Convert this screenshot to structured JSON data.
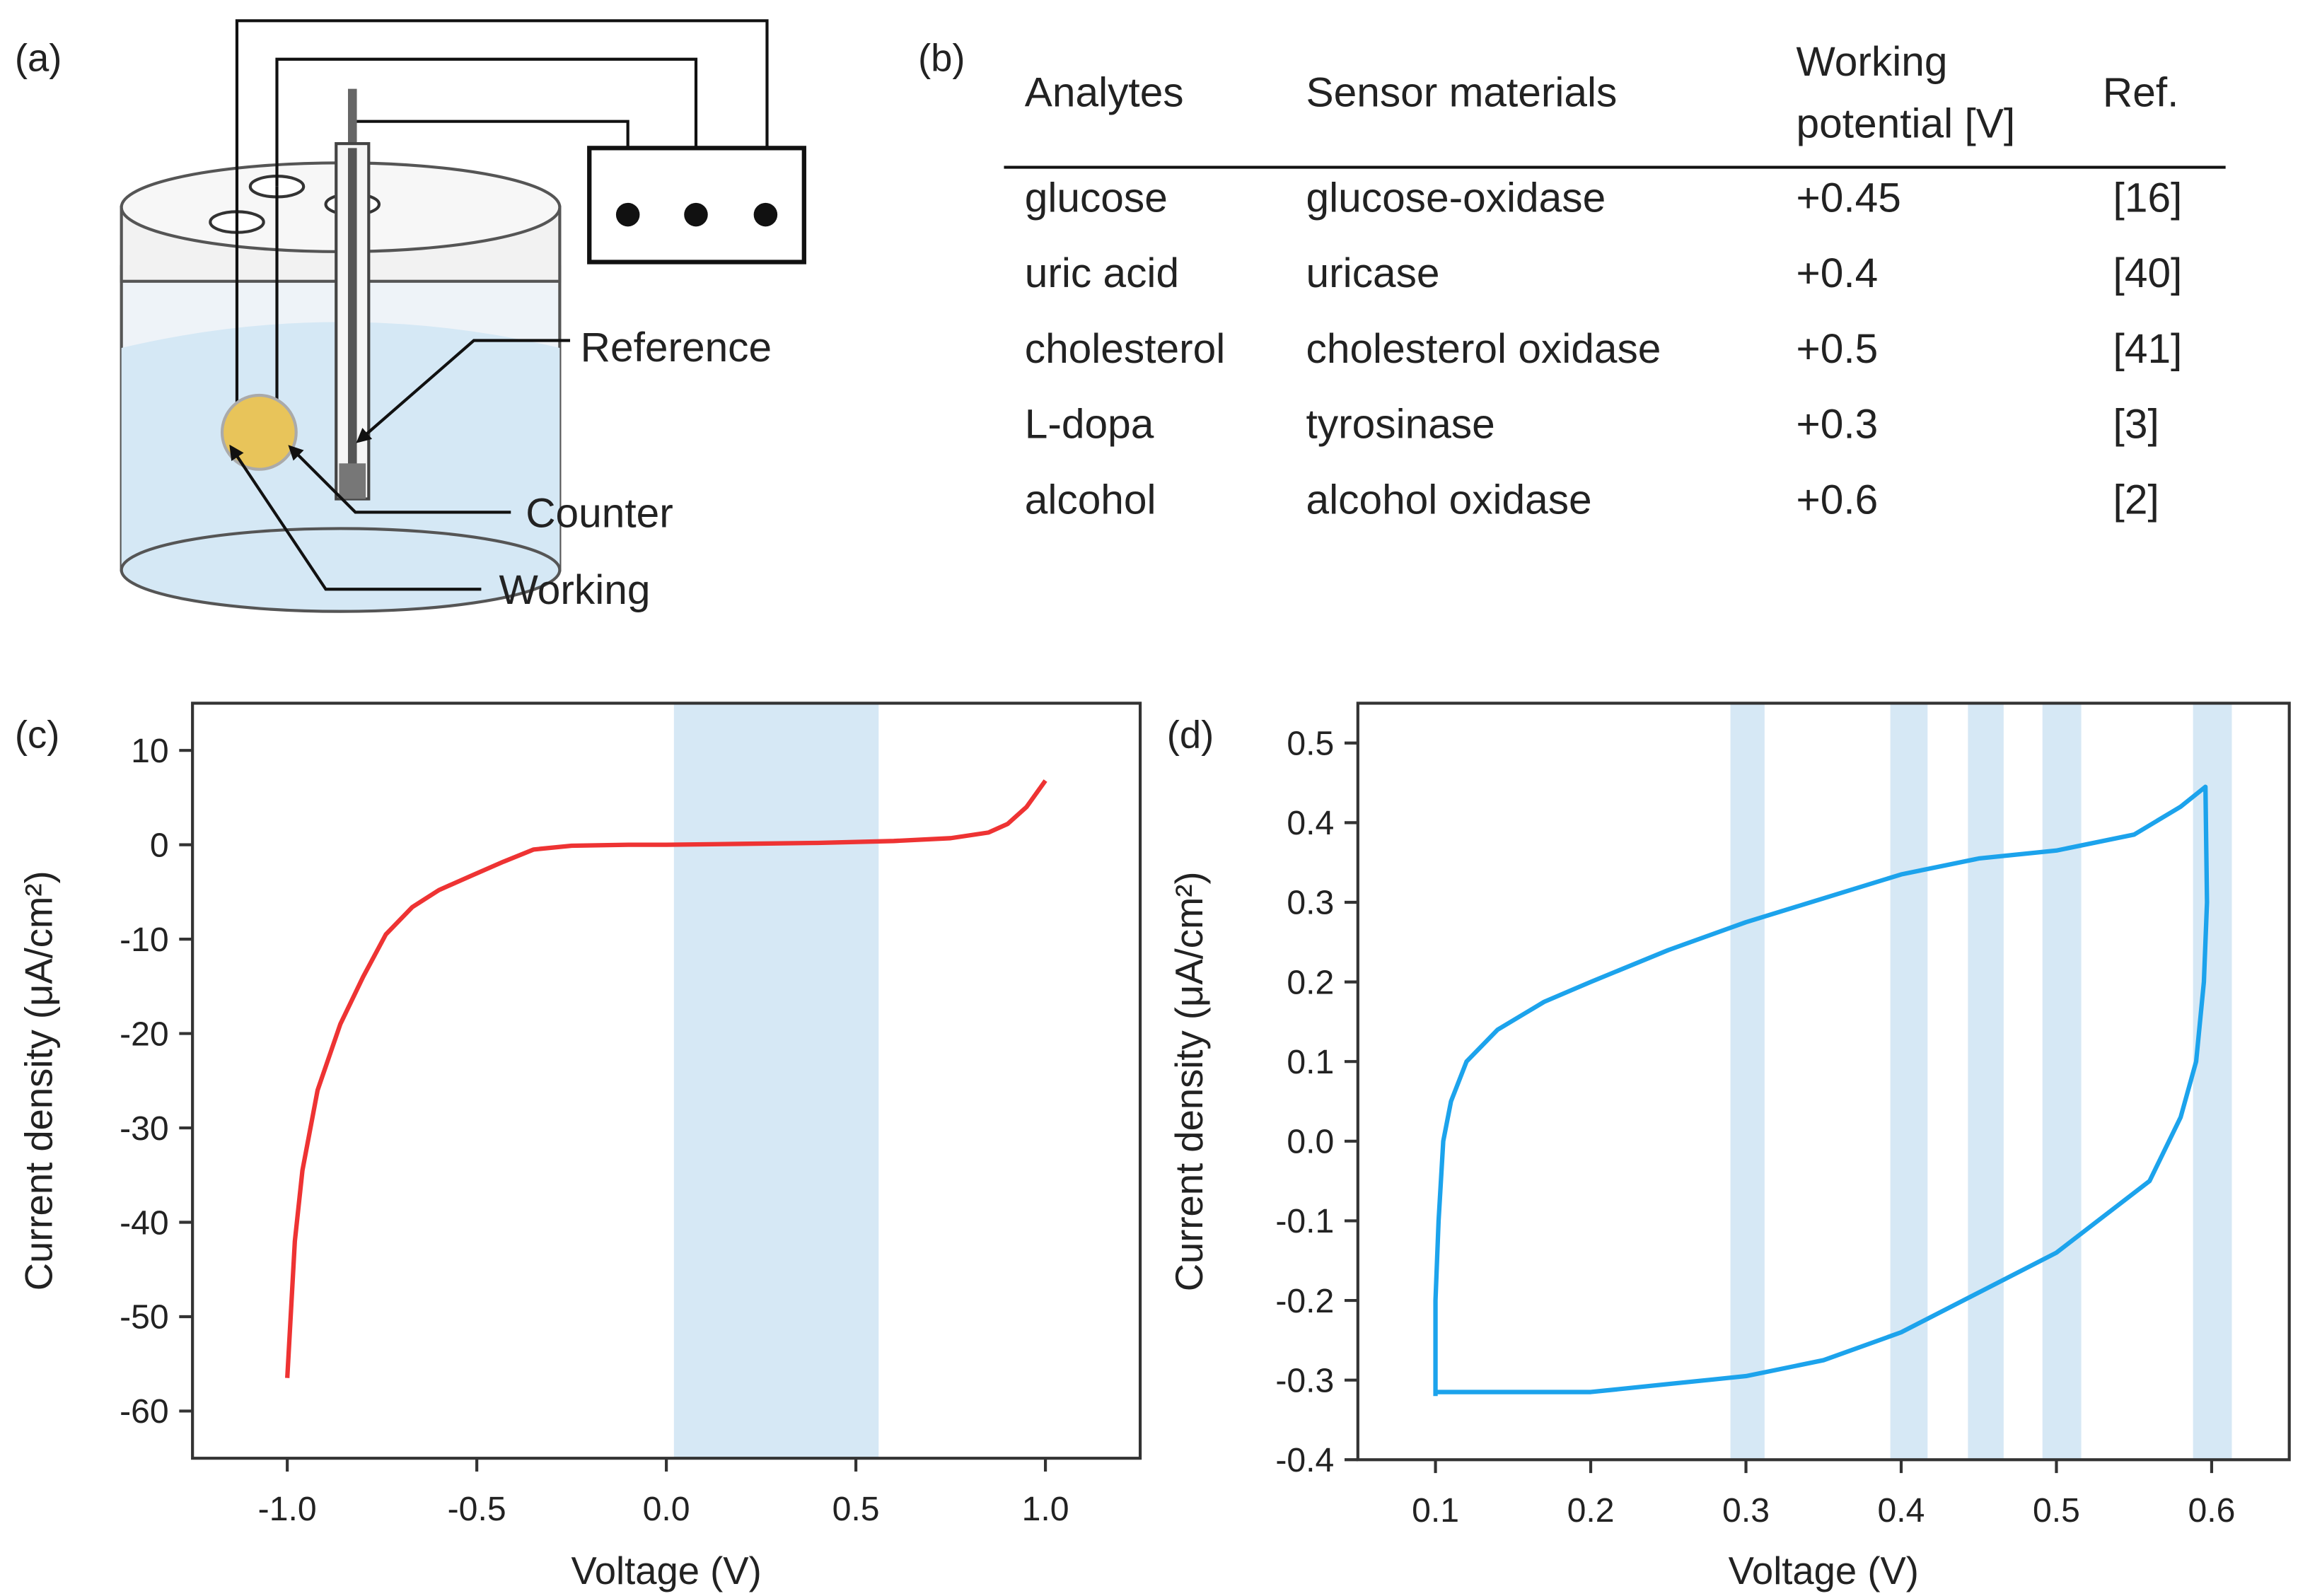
{
  "diagram": {
    "panel_label": "(a)",
    "labels": [
      "Reference",
      "Counter",
      "Working"
    ]
  },
  "table": {
    "panel_label": "(b)",
    "headers": [
      "Analytes",
      "Sensor materials",
      "Working potential [V]",
      "Ref."
    ],
    "rows": [
      [
        "glucose",
        "glucose-oxidase",
        "+0.45",
        "[16]"
      ],
      [
        "uric acid",
        "uricase",
        "+0.4",
        "[40]"
      ],
      [
        "cholesterol",
        "cholesterol oxidase",
        "+0.5",
        "[41]"
      ],
      [
        "L-dopa",
        "tyrosinase",
        "+0.3",
        "[3]"
      ],
      [
        "alcohol",
        "alcohol oxidase",
        "+0.6",
        "[2]"
      ]
    ]
  },
  "chart_data": [
    {
      "type": "line",
      "panel_label": "(c)",
      "x_label": "Voltage (V)",
      "y_label": "Current density (μA/cm²)",
      "xlim": [
        -1.25,
        1.25
      ],
      "ylim": [
        -65,
        15
      ],
      "xticks": [
        {
          "value": -1,
          "label": "-1.0"
        },
        {
          "value": -0.5,
          "label": "-0.5"
        },
        {
          "value": 0,
          "label": "0.0"
        },
        {
          "value": 0.5,
          "label": "0.5"
        },
        {
          "value": 1,
          "label": "1.0"
        }
      ],
      "yticks": [
        10,
        0,
        -10,
        -20,
        -30,
        -40,
        -50,
        -60
      ],
      "highlight_ranges": [
        [
          0.02,
          0.56
        ]
      ],
      "highlight_color": "#d6e8f5",
      "series": [
        {
          "color": "#ee3333",
          "x": [
            -1.0,
            -0.98,
            -0.96,
            -0.92,
            -0.86,
            -0.8,
            -0.74,
            -0.67,
            -0.6,
            -0.51,
            -0.43,
            -0.35,
            -0.25,
            -0.1,
            0,
            0.2,
            0.4,
            0.6,
            0.75,
            0.85,
            0.9,
            0.95,
            1.0
          ],
          "values": [
            -56.5,
            -42,
            -34.5,
            -26,
            -19,
            -14,
            -9.5,
            -6.6,
            -4.8,
            -3.2,
            -1.8,
            -0.5,
            -0.1,
            0,
            0,
            0.1,
            0.2,
            0.4,
            0.7,
            1.3,
            2.2,
            4,
            6.8
          ]
        }
      ]
    },
    {
      "type": "line",
      "panel_label": "(d)",
      "x_label": "Voltage (V)",
      "y_label": "Current density (μA/cm²)",
      "xlim": [
        0.05,
        0.65
      ],
      "ylim": [
        -0.4,
        0.55
      ],
      "xticks": [
        0.1,
        0.2,
        0.3,
        0.4,
        0.5,
        0.6
      ],
      "yticks": [
        0.5,
        0.4,
        0.3,
        0.2,
        0.1,
        {
          "value": 0,
          "label": "0.0"
        },
        -0.1,
        -0.2,
        -0.3,
        -0.4
      ],
      "highlight_ranges": [
        [
          0.29,
          0.312
        ],
        [
          0.393,
          0.417
        ],
        [
          0.443,
          0.466
        ],
        [
          0.491,
          0.516
        ],
        [
          0.588,
          0.613
        ]
      ],
      "highlight_color": "#d6e8f5",
      "series": [
        {
          "color": "#1ca3ec",
          "x": [
            0.1,
            0.1,
            0.102,
            0.105,
            0.11,
            0.12,
            0.14,
            0.17,
            0.2,
            0.25,
            0.3,
            0.35,
            0.4,
            0.45,
            0.5,
            0.55,
            0.58,
            0.596,
            0.597,
            0.595,
            0.59,
            0.58,
            0.56,
            0.5,
            0.45,
            0.4,
            0.35,
            0.3,
            0.25,
            0.2,
            0.15,
            0.1
          ],
          "values": [
            -0.32,
            -0.2,
            -0.1,
            0,
            0.05,
            0.1,
            0.14,
            0.175,
            0.2,
            0.24,
            0.275,
            0.305,
            0.335,
            0.355,
            0.365,
            0.385,
            0.42,
            0.445,
            0.3,
            0.2,
            0.1,
            0.03,
            -0.05,
            -0.14,
            -0.19,
            -0.24,
            -0.275,
            -0.295,
            -0.305,
            -0.315,
            -0.315,
            -0.315
          ]
        }
      ]
    }
  ]
}
